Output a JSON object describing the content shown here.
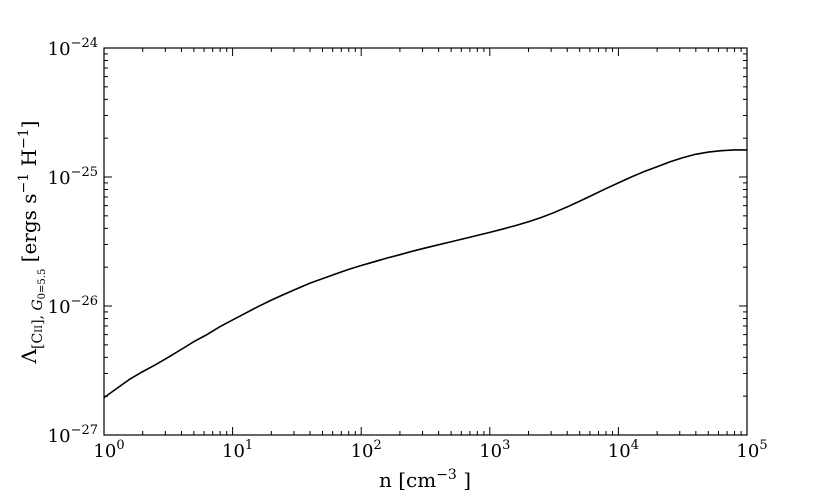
{
  "chart_data": {
    "type": "line",
    "title": "",
    "xlabel": {
      "base": "n [cm",
      "exponent": "−3",
      "suffix": " ]"
    },
    "ylabel": {
      "lambda": "Λ",
      "sub1": "[C",
      "sub_ii": "II",
      "sub_bracket": "]",
      "comma": ", ",
      "g": "G",
      "g_sub": "0=5.5",
      "units_a": " [ergs s",
      "units_exp1": "−1",
      "units_b": " H",
      "units_exp2": "−1",
      "units_c": "]"
    },
    "x_scale": "log",
    "y_scale": "log",
    "xlim": [
      1,
      100000
    ],
    "ylim": [
      1e-27,
      1e-24
    ],
    "grid": false,
    "legend": "none",
    "x_ticks": [
      {
        "value": 1,
        "base": "10",
        "exp": "0"
      },
      {
        "value": 10,
        "base": "10",
        "exp": "1"
      },
      {
        "value": 100,
        "base": "10",
        "exp": "2"
      },
      {
        "value": 1000,
        "base": "10",
        "exp": "3"
      },
      {
        "value": 10000,
        "base": "10",
        "exp": "4"
      },
      {
        "value": 100000,
        "base": "10",
        "exp": "5"
      }
    ],
    "y_ticks": [
      {
        "value": 1e-27,
        "base": "10",
        "exp": "−27"
      },
      {
        "value": 1e-26,
        "base": "10",
        "exp": "−26"
      },
      {
        "value": 1e-25,
        "base": "10",
        "exp": "−25"
      },
      {
        "value": 1e-24,
        "base": "10",
        "exp": "−24"
      }
    ],
    "series": [
      {
        "color": "#000000",
        "x": [
          1,
          1.26,
          1.58,
          2,
          2.51,
          3.16,
          3.98,
          5.01,
          6.31,
          7.94,
          10,
          12.6,
          15.8,
          20,
          25.1,
          31.6,
          39.8,
          50.1,
          63.1,
          79.4,
          100,
          126,
          158,
          200,
          251,
          316,
          398,
          501,
          631,
          794,
          1000,
          1260,
          1580,
          2000,
          2510,
          3160,
          3980,
          5010,
          6310,
          7940,
          10000,
          12600,
          15800,
          20000,
          25100,
          31600,
          39800,
          50100,
          63100,
          79400,
          100000
        ],
        "y": [
          1.95e-27,
          2.3e-27,
          2.7e-27,
          3.1e-27,
          3.5e-27,
          4e-27,
          4.6e-27,
          5.3e-27,
          6e-27,
          6.9e-27,
          7.8e-27,
          8.8e-27,
          9.9e-27,
          1.11e-26,
          1.23e-26,
          1.36e-26,
          1.5e-26,
          1.63e-26,
          1.77e-26,
          1.92e-26,
          2.06e-26,
          2.2e-26,
          2.35e-26,
          2.5e-26,
          2.66e-26,
          2.82e-26,
          2.98e-26,
          3.15e-26,
          3.33e-26,
          3.52e-26,
          3.72e-26,
          3.95e-26,
          4.2e-26,
          4.5e-26,
          4.85e-26,
          5.3e-26,
          5.85e-26,
          6.5e-26,
          7.25e-26,
          8.1e-26,
          9e-26,
          1e-25,
          1.1e-25,
          1.2e-25,
          1.31e-25,
          1.41e-25,
          1.5e-25,
          1.56e-25,
          1.6e-25,
          1.62e-25,
          1.62e-25
        ]
      }
    ]
  }
}
